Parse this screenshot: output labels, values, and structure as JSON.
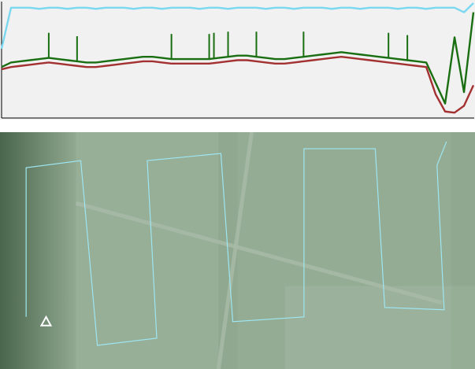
{
  "window": {
    "description_labels": []
  },
  "colors": {
    "profile_background": "#f1f1f1",
    "axis": "#000000",
    "series_top": "#7ad8f0",
    "series_middle": "#1a6e12",
    "series_bottom": "#a33131",
    "map_base": "#8fa88f",
    "map_dark_edge": "#3d5a40",
    "road": "#a9bba9",
    "flight_path": "#9ee6f2",
    "home_marker": "#ffffff"
  },
  "chart_data": {
    "type": "line",
    "title": "",
    "xlabel": "",
    "ylabel": "",
    "grid": false,
    "legend": "none",
    "x": [
      0,
      2,
      4,
      6,
      8,
      10,
      12,
      14,
      16,
      18,
      20,
      22,
      24,
      26,
      28,
      30,
      32,
      34,
      36,
      38,
      40,
      42,
      44,
      46,
      48,
      50,
      52,
      54,
      56,
      58,
      60,
      62,
      64,
      66,
      68,
      70,
      72,
      74,
      76,
      78,
      80,
      82,
      84,
      86,
      88,
      90,
      92,
      94,
      96,
      98,
      100
    ],
    "series": [
      {
        "color_key": "series_top",
        "values": [
          60,
          96,
          96,
          96,
          95,
          96,
          96,
          95,
          96,
          96,
          95,
          96,
          96,
          96,
          95,
          96,
          96,
          95,
          96,
          96,
          96,
          95,
          96,
          96,
          95,
          96,
          96,
          96,
          95,
          96,
          96,
          95,
          96,
          96,
          96,
          95,
          96,
          96,
          95,
          96,
          96,
          96,
          95,
          96,
          96,
          95,
          96,
          96,
          96,
          92,
          100
        ]
      },
      {
        "color_key": "series_middle",
        "values": [
          44,
          48,
          49,
          50,
          51,
          52,
          51,
          50,
          49,
          48,
          48,
          49,
          50,
          51,
          52,
          53,
          53,
          52,
          51,
          51,
          51,
          51,
          51,
          52,
          53,
          54,
          54,
          53,
          52,
          51,
          51,
          52,
          53,
          54,
          55,
          56,
          57,
          56,
          55,
          54,
          53,
          52,
          51,
          50,
          49,
          48,
          30,
          12,
          70,
          22,
          92
        ]
      },
      {
        "color_key": "series_bottom",
        "values": [
          42,
          44,
          45,
          46,
          47,
          48,
          47,
          46,
          45,
          44,
          44,
          45,
          46,
          47,
          48,
          49,
          49,
          48,
          47,
          47,
          47,
          47,
          47,
          48,
          49,
          50,
          50,
          49,
          48,
          47,
          47,
          48,
          49,
          50,
          51,
          52,
          53,
          52,
          51,
          50,
          49,
          48,
          47,
          46,
          45,
          44,
          20,
          5,
          4,
          10,
          28
        ]
      }
    ],
    "spikes_series_middle_x": [
      10,
      16,
      36,
      44,
      45,
      48,
      54,
      64,
      82,
      86
    ],
    "ylim": [
      0,
      100
    ],
    "xlim": [
      0,
      100
    ]
  },
  "map": {
    "flight_path_waypoints": [
      [
        0.055,
        0.78
      ],
      [
        0.055,
        0.15
      ],
      [
        0.17,
        0.12
      ],
      [
        0.205,
        0.9
      ],
      [
        0.33,
        0.87
      ],
      [
        0.31,
        0.12
      ],
      [
        0.465,
        0.09
      ],
      [
        0.49,
        0.8
      ],
      [
        0.64,
        0.78
      ],
      [
        0.64,
        0.07
      ],
      [
        0.79,
        0.07
      ],
      [
        0.81,
        0.74
      ],
      [
        0.935,
        0.75
      ],
      [
        0.92,
        0.14
      ],
      [
        0.94,
        0.04
      ]
    ],
    "roads": [
      [
        [
          0.16,
          0.3
        ],
        [
          0.93,
          0.72
        ]
      ],
      [
        [
          0.53,
          0.0
        ],
        [
          0.46,
          1.0
        ]
      ]
    ],
    "home_marker_position": [
      0.097,
      0.8
    ]
  }
}
